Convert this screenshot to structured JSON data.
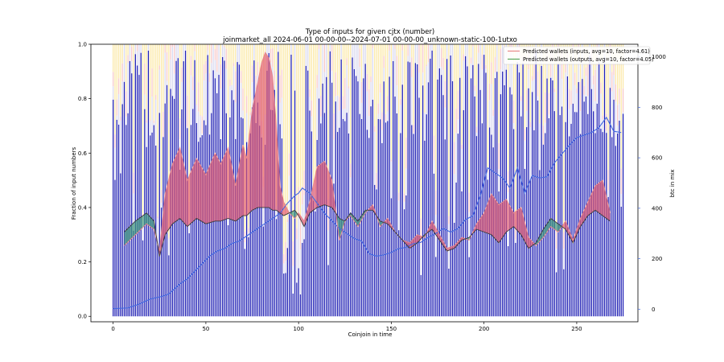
{
  "chart_data": {
    "type": "bar",
    "title": "Type of inputs for given cjtx (number)",
    "subtitle": "joinmarket_all 2024-06-01 00-00-00--2024-07-01 00-00-00_unknown-static-100-1utxo",
    "xlabel": "Coinjoin in time",
    "ylabel": "Fraction of input numbers",
    "y2label": "btc in mix",
    "xlim": [
      -12,
      283
    ],
    "ylim": [
      -0.02,
      1.0
    ],
    "y2lim": [
      -50,
      1050
    ],
    "xticks": [
      0,
      50,
      100,
      150,
      200,
      250
    ],
    "yticks": [
      0.0,
      0.2,
      0.4,
      0.6,
      0.8,
      1.0
    ],
    "y2ticks": [
      0,
      200,
      400,
      600,
      800,
      1000
    ],
    "n_bars": 276,
    "bar_colors": {
      "base": "#1f1fb4",
      "mid": "#d9d9f0",
      "pink": "#f7c8c8",
      "top": "#fbe9a8"
    },
    "legend": {
      "position": "top-right",
      "items": [
        {
          "label": "Predicted wallets (inputs, avg=10, factor=4.61)",
          "color": "#e8888a"
        },
        {
          "label": "Predicted wallets (outputs, avg=10, factor=4.05)",
          "color": "#5aa55a"
        }
      ]
    },
    "series": [
      {
        "name": "Predicted wallets (inputs, avg=10, factor=4.61)",
        "x": [
          6,
          12,
          18,
          22,
          25,
          28,
          32,
          36,
          40,
          45,
          50,
          55,
          58,
          62,
          66,
          70,
          72,
          75,
          78,
          80,
          82,
          84,
          86,
          88,
          90,
          92,
          95,
          98,
          100,
          103,
          106,
          110,
          114,
          118,
          122,
          125,
          128,
          132,
          136,
          140,
          144,
          148,
          152,
          156,
          160,
          164,
          168,
          172,
          176,
          180,
          184,
          188,
          192,
          196,
          200,
          204,
          208,
          212,
          216,
          220,
          224,
          228,
          232,
          236,
          240,
          244,
          248,
          252,
          256,
          260,
          264,
          268
        ],
        "values": [
          0.26,
          0.3,
          0.34,
          0.32,
          0.24,
          0.45,
          0.56,
          0.62,
          0.5,
          0.58,
          0.52,
          0.6,
          0.56,
          0.62,
          0.48,
          0.63,
          0.58,
          0.76,
          0.86,
          0.93,
          0.97,
          0.95,
          0.88,
          0.7,
          0.48,
          0.42,
          0.38,
          0.36,
          0.38,
          0.35,
          0.42,
          0.55,
          0.57,
          0.5,
          0.28,
          0.35,
          0.37,
          0.33,
          0.38,
          0.41,
          0.33,
          0.36,
          0.31,
          0.28,
          0.27,
          0.3,
          0.29,
          0.35,
          0.3,
          0.25,
          0.26,
          0.29,
          0.28,
          0.34,
          0.38,
          0.45,
          0.41,
          0.43,
          0.38,
          0.4,
          0.29,
          0.26,
          0.29,
          0.33,
          0.31,
          0.35,
          0.28,
          0.36,
          0.42,
          0.48,
          0.5,
          0.38
        ]
      },
      {
        "name": "Predicted wallets (outputs, avg=10, factor=4.05)",
        "x": [
          6,
          12,
          18,
          22,
          25,
          28,
          32,
          36,
          40,
          45,
          50,
          55,
          58,
          62,
          66,
          70,
          72,
          75,
          78,
          80,
          82,
          84,
          86,
          88,
          90,
          92,
          95,
          98,
          100,
          103,
          106,
          110,
          114,
          118,
          122,
          125,
          128,
          132,
          136,
          140,
          144,
          148,
          152,
          156,
          160,
          164,
          168,
          172,
          176,
          180,
          184,
          188,
          192,
          196,
          200,
          204,
          208,
          212,
          216,
          220,
          224,
          228,
          232,
          236,
          240,
          244,
          248,
          252,
          256,
          260,
          264,
          268
        ],
        "values": [
          0.31,
          0.35,
          0.38,
          0.35,
          0.22,
          0.3,
          0.34,
          0.36,
          0.33,
          0.36,
          0.34,
          0.35,
          0.35,
          0.36,
          0.35,
          0.37,
          0.37,
          0.39,
          0.4,
          0.4,
          0.4,
          0.4,
          0.39,
          0.39,
          0.38,
          0.37,
          0.38,
          0.39,
          0.37,
          0.33,
          0.38,
          0.4,
          0.41,
          0.4,
          0.36,
          0.35,
          0.38,
          0.35,
          0.39,
          0.39,
          0.35,
          0.34,
          0.31,
          0.28,
          0.25,
          0.27,
          0.3,
          0.32,
          0.28,
          0.24,
          0.25,
          0.28,
          0.29,
          0.32,
          0.31,
          0.3,
          0.27,
          0.31,
          0.33,
          0.3,
          0.25,
          0.27,
          0.32,
          0.36,
          0.34,
          0.32,
          0.27,
          0.33,
          0.37,
          0.39,
          0.37,
          0.35
        ]
      },
      {
        "name": "btc in mix",
        "x": [
          0,
          8,
          14,
          20,
          26,
          30,
          36,
          40,
          44,
          48,
          52,
          56,
          60,
          64,
          68,
          72,
          76,
          80,
          84,
          88,
          90,
          94,
          98,
          100,
          102,
          106,
          110,
          114,
          118,
          122,
          126,
          130,
          134,
          138,
          142,
          146,
          150,
          154,
          158,
          162,
          166,
          170,
          174,
          178,
          182,
          186,
          190,
          194,
          198,
          202,
          206,
          210,
          214,
          218,
          222,
          226,
          230,
          234,
          238,
          242,
          246,
          250,
          254,
          258,
          262,
          266,
          270,
          274
        ],
        "values": [
          2,
          5,
          20,
          40,
          50,
          60,
          100,
          120,
          150,
          180,
          210,
          230,
          240,
          260,
          270,
          290,
          310,
          330,
          350,
          370,
          380,
          420,
          450,
          460,
          480,
          460,
          420,
          380,
          350,
          320,
          300,
          280,
          270,
          220,
          210,
          215,
          225,
          240,
          245,
          260,
          265,
          285,
          300,
          320,
          305,
          320,
          355,
          370,
          450,
          560,
          540,
          520,
          480,
          560,
          460,
          530,
          520,
          525,
          580,
          615,
          650,
          680,
          690,
          700,
          720,
          760,
          705,
          700
        ]
      }
    ]
  }
}
